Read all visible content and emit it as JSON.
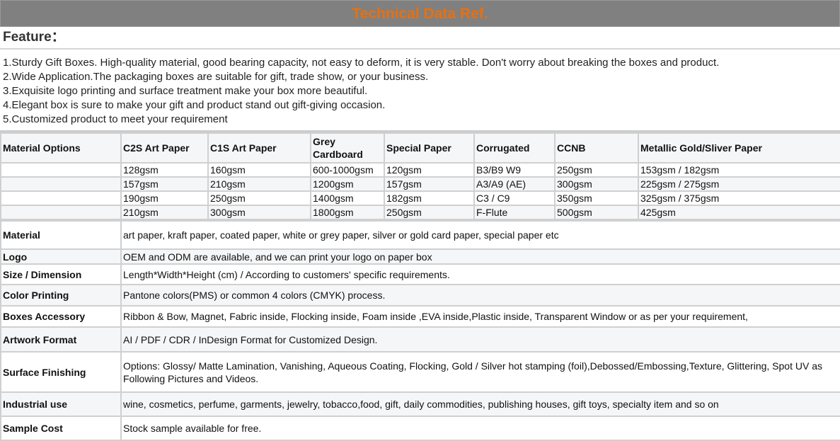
{
  "title": "Technical Data Ref.",
  "feature_heading": "Feature：",
  "features": [
    "1.Sturdy Gift Boxes. High-quality material, good bearing capacity, not easy to deform, it is very stable. Don't worry about breaking the boxes and product.",
    "2.Wide Application.The packaging boxes are suitable for gift, trade show, or your business.",
    "3.Exquisite logo printing and surface treatment make your box more beautiful.",
    "4.Elegant box is sure to make your gift and product stand out gift-giving occasion.",
    "5.Customized product to meet your requirement"
  ],
  "material_table": {
    "headers": [
      "Material Options",
      "C2S Art Paper",
      "C1S Art Paper",
      "Grey Cardboard",
      "Special Paper",
      "Corrugated",
      "CCNB",
      "Metallic Gold/Sliver Paper"
    ],
    "rows": [
      [
        "",
        "128gsm",
        "160gsm",
        "600-1000gsm",
        "120gsm",
        "B3/B9 W9",
        "250gsm",
        "153gsm / 182gsm"
      ],
      [
        "",
        "157gsm",
        "210gsm",
        "1200gsm",
        "157gsm",
        "A3/A9 (AE)",
        "300gsm",
        "225gsm / 275gsm"
      ],
      [
        "",
        "190gsm",
        "250gsm",
        "1400gsm",
        "182gsm",
        "C3 / C9",
        "350gsm",
        "325gsm / 375gsm"
      ],
      [
        "",
        "210gsm",
        "300gsm",
        "1800gsm",
        "250gsm",
        "F-Flute",
        "500gsm",
        "425gsm"
      ]
    ]
  },
  "specs": [
    {
      "label": "Material",
      "value": "art paper, kraft paper, coated paper, white or grey paper, silver or gold card paper, special paper etc"
    },
    {
      "label": "Logo",
      "value": "OEM and ODM are available, and we can print your logo on paper box"
    },
    {
      "label": "Size / Dimension",
      "value": "Length*Width*Height (cm) / According to customers' specific requirements."
    },
    {
      "label": "Color Printing",
      "value": "Pantone colors(PMS) or common 4 colors (CMYK) process."
    },
    {
      "label": "Boxes Accessory",
      "value": "Ribbon & Bow, Magnet, Fabric inside, Flocking inside, Foam inside ,EVA inside,Plastic inside, Transparent Window or as per your requirement,"
    },
    {
      "label": "Artwork Format",
      "value": "AI / PDF / CDR / InDesign Format for Customized Design."
    },
    {
      "label": "Surface Finishing",
      "value": "Options: Glossy/ Matte Lamination, Vanishing, Aqueous Coating, Flocking, Gold / Silver hot stamping (foil),Debossed/Embossing,Texture, Glittering, Spot UV as Following Pictures and Videos."
    },
    {
      "label": "Industrial use",
      "value": "wine, cosmetics, perfume, garments, jewelry, tobacco,food, gift, daily commodities, publishing houses, gift toys, specialty item and so on"
    },
    {
      "label": "Sample Cost",
      "value": "Stock sample available for free."
    }
  ],
  "colors": {
    "title_bg": "#808080",
    "title_text": "#e8700f",
    "alt_row": "#f5f6f8",
    "border": "#d0d0d0"
  }
}
